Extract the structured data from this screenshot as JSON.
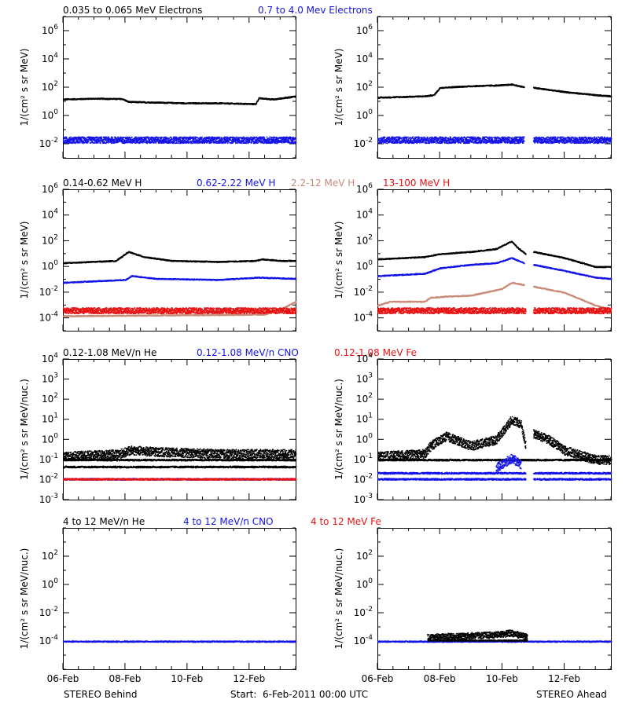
{
  "footer": {
    "left": "STEREO Behind",
    "center": "Start:  6-Feb-2011 00:00 UTC",
    "right": "STEREO Ahead"
  },
  "x_ticks": [
    "06-Feb",
    "08-Feb",
    "10-Feb",
    "12-Feb"
  ],
  "colors": {
    "black": "#000000",
    "blue": "#1414e6",
    "tan": "#c88c78",
    "red": "#e61414"
  },
  "chart_data": [
    {
      "type": "scatter",
      "panel": "electrons",
      "legend": [
        {
          "label": "0.035 to 0.065 MeV Electrons",
          "color": "black"
        },
        {
          "label": "0.7 to 4.0 Mev Electrons",
          "color": "blue"
        }
      ],
      "ylabel": "1/(cm² s sr MeV)",
      "yscale": "log",
      "ylim_exp": [
        -3,
        7
      ],
      "ytick_exps": [
        -2,
        0,
        2,
        4,
        6
      ],
      "xlim_days": [
        0,
        7.5
      ],
      "x_tick_days": [
        0,
        2,
        4,
        6
      ],
      "behind": [
        {
          "color": "black",
          "points": [
            [
              0,
              15
            ],
            [
              1,
              17
            ],
            [
              1.9,
              16
            ],
            [
              2.1,
              10
            ],
            [
              3,
              9
            ],
            [
              4,
              8
            ],
            [
              5,
              8
            ],
            [
              6.2,
              7
            ],
            [
              6.3,
              18
            ],
            [
              6.8,
              15
            ],
            [
              7.5,
              25
            ]
          ]
        },
        {
          "color": "blue",
          "noise": true,
          "points": [
            [
              0,
              0.02
            ],
            [
              7.5,
              0.02
            ]
          ]
        }
      ],
      "ahead": [
        {
          "color": "black",
          "points": [
            [
              0,
              20
            ],
            [
              1.5,
              25
            ],
            [
              1.8,
              30
            ],
            [
              2,
              100
            ],
            [
              3,
              130
            ],
            [
              4,
              150
            ],
            [
              4.3,
              170
            ],
            [
              4.7,
              110
            ],
            [
              4.8,
              null
            ],
            [
              5,
              100
            ],
            [
              6,
              50
            ],
            [
              7,
              30
            ],
            [
              7.5,
              25
            ]
          ]
        },
        {
          "color": "blue",
          "noise": true,
          "points": [
            [
              0,
              0.02
            ],
            [
              4.7,
              0.02
            ],
            [
              4.8,
              null
            ],
            [
              5,
              0.02
            ],
            [
              7.5,
              0.02
            ]
          ]
        }
      ]
    },
    {
      "type": "scatter",
      "panel": "protons",
      "legend": [
        {
          "label": "0.14-0.62 MeV H",
          "color": "black"
        },
        {
          "label": "0.62-2.22 MeV H",
          "color": "blue"
        },
        {
          "label": "2.2-12 MeV H",
          "color": "tan"
        },
        {
          "label": "13-100 MeV H",
          "color": "red"
        }
      ],
      "ylabel": "1/(cm² s sr MeV)",
      "yscale": "log",
      "ylim_exp": [
        -5,
        6
      ],
      "ytick_exps": [
        -4,
        -2,
        0,
        2,
        4,
        6
      ],
      "xlim_days": [
        0,
        7.5
      ],
      "x_tick_days": [
        0,
        2,
        4,
        6
      ],
      "behind": [
        {
          "color": "black",
          "points": [
            [
              0,
              2
            ],
            [
              1.7,
              3
            ],
            [
              2.1,
              15
            ],
            [
              2.6,
              6
            ],
            [
              3.5,
              3
            ],
            [
              5,
              2.5
            ],
            [
              6.2,
              3
            ],
            [
              6.4,
              4
            ],
            [
              7,
              3
            ],
            [
              7.5,
              3
            ]
          ]
        },
        {
          "color": "blue",
          "points": [
            [
              0,
              0.06
            ],
            [
              2,
              0.1
            ],
            [
              2.2,
              0.2
            ],
            [
              3,
              0.12
            ],
            [
              5,
              0.1
            ],
            [
              6.3,
              0.15
            ],
            [
              7.5,
              0.12
            ]
          ]
        },
        {
          "color": "tan",
          "points": [
            [
              0,
              0.00015
            ],
            [
              6.5,
              0.0002
            ],
            [
              7,
              0.0005
            ],
            [
              7.5,
              0.002
            ]
          ]
        },
        {
          "color": "red",
          "noise": true,
          "points": [
            [
              0,
              0.0004
            ],
            [
              7.5,
              0.0004
            ]
          ]
        }
      ],
      "ahead": [
        {
          "color": "black",
          "points": [
            [
              0,
              4
            ],
            [
              1.5,
              6
            ],
            [
              2,
              10
            ],
            [
              3,
              15
            ],
            [
              3.8,
              25
            ],
            [
              4.3,
              100
            ],
            [
              4.5,
              30
            ],
            [
              4.75,
              10
            ],
            [
              4.8,
              null
            ],
            [
              5,
              15
            ],
            [
              6,
              5
            ],
            [
              7,
              1
            ],
            [
              7.5,
              1
            ]
          ]
        },
        {
          "color": "blue",
          "points": [
            [
              0,
              0.2
            ],
            [
              1.5,
              0.3
            ],
            [
              2,
              0.8
            ],
            [
              3,
              1.5
            ],
            [
              3.8,
              2
            ],
            [
              4.3,
              5
            ],
            [
              4.7,
              2
            ],
            [
              4.8,
              null
            ],
            [
              5,
              1.5
            ],
            [
              6,
              0.5
            ],
            [
              7,
              0.15
            ],
            [
              7.5,
              0.12
            ]
          ]
        },
        {
          "color": "tan",
          "points": [
            [
              0,
              0.001
            ],
            [
              0.4,
              0.002
            ],
            [
              1.5,
              0.002
            ],
            [
              1.7,
              0.004
            ],
            [
              2.2,
              0.005
            ],
            [
              3,
              0.006
            ],
            [
              4,
              0.02
            ],
            [
              4.3,
              0.06
            ],
            [
              4.7,
              0.04
            ],
            [
              4.8,
              null
            ],
            [
              5,
              0.03
            ],
            [
              6,
              0.01
            ],
            [
              7,
              0.001
            ],
            [
              7.5,
              0.0005
            ]
          ]
        },
        {
          "color": "red",
          "noise": true,
          "points": [
            [
              0,
              0.0004
            ],
            [
              4.75,
              0.0004
            ],
            [
              4.8,
              null
            ],
            [
              5,
              0.0004
            ],
            [
              7.5,
              0.0004
            ]
          ]
        }
      ]
    },
    {
      "type": "scatter",
      "panel": "heavy-ions",
      "legend": [
        {
          "label": "0.12-1.08 MeV/n He",
          "color": "black"
        },
        {
          "label": "0.12-1.08 MeV/n CNO",
          "color": "blue"
        },
        {
          "label": "0.12-1.08 MeV Fe",
          "color": "red"
        }
      ],
      "ylabel": "1/(cm² s sr MeV/nuc.)",
      "yscale": "log",
      "ylim_exp": [
        -3,
        4
      ],
      "ytick_exps": [
        -3,
        -2,
        -1,
        0,
        1,
        2,
        3,
        4
      ],
      "xlim_days": [
        0,
        7.5
      ],
      "x_tick_days": [
        0,
        2,
        4,
        6
      ],
      "behind": [
        {
          "color": "black",
          "noise": true,
          "points": [
            [
              0,
              0.15
            ],
            [
              1.8,
              0.2
            ],
            [
              2.2,
              0.3
            ],
            [
              3,
              0.25
            ],
            [
              5,
              0.2
            ],
            [
              7.5,
              0.2
            ]
          ]
        },
        {
          "color": "black",
          "points": [
            [
              0,
              0.1
            ],
            [
              7.5,
              0.1
            ]
          ]
        },
        {
          "color": "black",
          "points": [
            [
              0,
              0.045
            ],
            [
              7.5,
              0.045
            ]
          ]
        },
        {
          "color": "blue",
          "points": [
            [
              0,
              0.011
            ],
            [
              7.5,
              0.011
            ]
          ]
        },
        {
          "color": "red",
          "points": [
            [
              0,
              0.011
            ],
            [
              7.5,
              0.011
            ]
          ]
        }
      ],
      "ahead": [
        {
          "color": "black",
          "noise": true,
          "points": [
            [
              0,
              0.15
            ],
            [
              1.5,
              0.2
            ],
            [
              1.7,
              0.5
            ],
            [
              2.2,
              1.5
            ],
            [
              3,
              0.5
            ],
            [
              3.8,
              1
            ],
            [
              4.3,
              10
            ],
            [
              4.6,
              6
            ],
            [
              4.75,
              0.5
            ],
            [
              4.8,
              null
            ],
            [
              5,
              2
            ],
            [
              5.5,
              1
            ],
            [
              6,
              0.3
            ],
            [
              7,
              0.1
            ],
            [
              7.5,
              0.1
            ]
          ]
        },
        {
          "color": "black",
          "points": [
            [
              0,
              0.1
            ],
            [
              7.5,
              0.1
            ]
          ]
        },
        {
          "color": "blue",
          "points": [
            [
              0,
              0.011
            ],
            [
              4.75,
              0.011
            ],
            [
              4.8,
              null
            ],
            [
              5,
              0.011
            ],
            [
              7.5,
              0.011
            ]
          ]
        },
        {
          "color": "blue",
          "points": [
            [
              0,
              0.022
            ],
            [
              4.75,
              0.022
            ],
            [
              4.8,
              null
            ],
            [
              5,
              0.022
            ],
            [
              7.5,
              0.022
            ]
          ]
        },
        {
          "color": "blue",
          "noise": true,
          "points": [
            [
              3.8,
              0.04
            ],
            [
              4.3,
              0.12
            ],
            [
              4.6,
              0.06
            ]
          ]
        }
      ]
    },
    {
      "type": "scatter",
      "panel": "high-energy-ions",
      "legend": [
        {
          "label": "4 to 12 MeV/n He",
          "color": "black"
        },
        {
          "label": "4 to 12 MeV/n CNO",
          "color": "blue"
        },
        {
          "label": "4 to 12 MeV Fe",
          "color": "red"
        }
      ],
      "ylabel": "1/(cm² s sr MeV/nuc.)",
      "yscale": "log",
      "ylim_exp": [
        -6,
        4
      ],
      "ytick_exps": [
        -4,
        -2,
        0,
        2
      ],
      "xlim_days": [
        0,
        7.5
      ],
      "x_tick_days": [
        0,
        2,
        4,
        6
      ],
      "behind": [
        {
          "color": "blue",
          "points": [
            [
              0,
              0.0001
            ],
            [
              7.5,
              0.0001
            ]
          ]
        }
      ],
      "ahead": [
        {
          "color": "blue",
          "points": [
            [
              0,
              0.0001
            ],
            [
              7.5,
              0.0001
            ]
          ]
        },
        {
          "color": "black",
          "points": [
            [
              1.6,
              0.00012
            ],
            [
              4.8,
              0.00012
            ]
          ]
        },
        {
          "color": "black",
          "noise": true,
          "points": [
            [
              1.6,
              0.0002
            ],
            [
              3.8,
              0.0003
            ],
            [
              4.3,
              0.0004
            ],
            [
              4.8,
              0.0002
            ]
          ]
        }
      ]
    }
  ]
}
